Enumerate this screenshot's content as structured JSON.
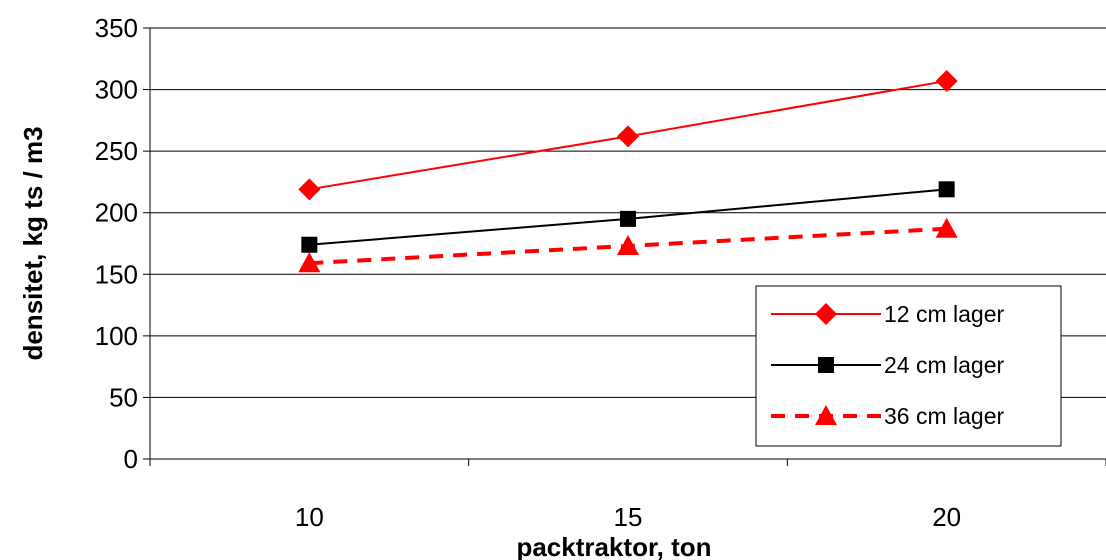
{
  "chart_data": {
    "type": "line",
    "title": "",
    "xlabel": "packtraktor, ton",
    "ylabel": "densitet, kg ts / m3",
    "categories": [
      "10",
      "15",
      "20"
    ],
    "ylim": [
      0,
      350
    ],
    "yticks": [
      "0",
      "50",
      "100",
      "150",
      "200",
      "250",
      "300",
      "350"
    ],
    "grid": true,
    "legend_position": "bottom-right",
    "series": [
      {
        "name": "12 cm lager",
        "values": [
          219,
          262,
          307
        ],
        "color": "#ff0000",
        "marker": "diamond",
        "line_style": "solid"
      },
      {
        "name": "24 cm lager",
        "values": [
          174,
          195,
          219
        ],
        "color": "#000000",
        "marker": "square",
        "line_style": "solid"
      },
      {
        "name": "36 cm lager",
        "values": [
          159,
          173,
          187
        ],
        "color": "#ff0000",
        "marker": "triangle",
        "line_style": "dashed"
      }
    ]
  }
}
